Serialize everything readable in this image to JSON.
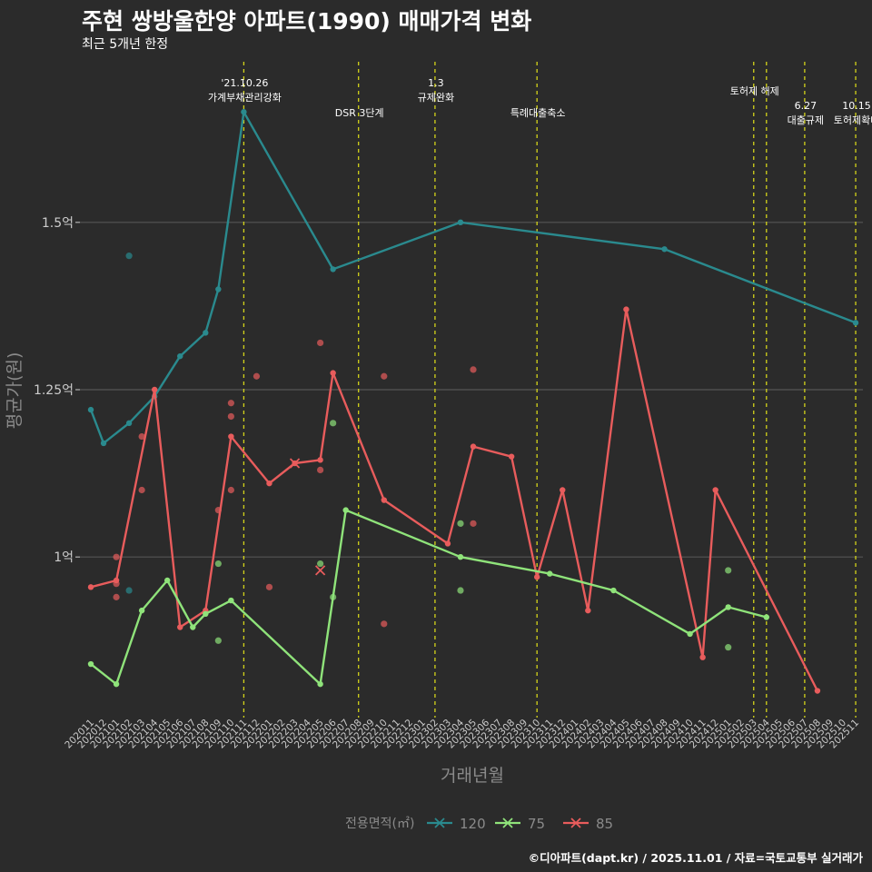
{
  "title": "주현 쌍방울한양 아파트(1990) 매매가격 변화",
  "subtitle": "최근 5개년 한정",
  "caption": "©디아파트(dapt.kr) / 2025.11.01 / 자료=국토교통부 실거래가",
  "colors": {
    "s120": "#2a8a8e",
    "s75": "#8fe37a",
    "s85": "#e85c5c",
    "vline": "#d4d41a",
    "grid": "#555555",
    "text": "#cccccc",
    "axis_title": "#8a8a8a"
  },
  "chart_data": {
    "type": "line",
    "xlabel": "거래년월",
    "ylabel": "평균가(원)",
    "ylim": [
      0.76,
      1.74
    ],
    "yticks": [
      {
        "value": 1.0,
        "label": "1억"
      },
      {
        "value": 1.25,
        "label": "1.25억"
      },
      {
        "value": 1.5,
        "label": "1.5억"
      }
    ],
    "categories": [
      "202011",
      "202012",
      "202101",
      "202102",
      "202103",
      "202104",
      "202105",
      "202106",
      "202107",
      "202108",
      "202109",
      "202110",
      "202111",
      "202112",
      "202201",
      "202202",
      "202203",
      "202204",
      "202205",
      "202206",
      "202207",
      "202208",
      "202209",
      "202210",
      "202211",
      "202212",
      "202301",
      "202302",
      "202303",
      "202304",
      "202305",
      "202306",
      "202307",
      "202308",
      "202309",
      "202310",
      "202311",
      "202312",
      "202401",
      "202402",
      "202403",
      "202404",
      "202405",
      "202406",
      "202407",
      "202408",
      "202409",
      "202410",
      "202411",
      "202412",
      "202501",
      "202502",
      "202503",
      "202504",
      "202505",
      "202506",
      "202507",
      "202508",
      "202509",
      "202510",
      "202511"
    ],
    "legend_title": "전용면적(㎡)",
    "series": [
      {
        "name": "120",
        "color": "#2a8a8e",
        "line": [
          [
            "202011",
            1.22
          ],
          [
            "202012",
            1.17
          ],
          [
            "202102",
            1.2
          ],
          [
            "202104",
            1.24
          ],
          [
            "202106",
            1.3
          ],
          [
            "202108",
            1.335
          ],
          [
            "202109",
            1.4
          ],
          [
            "202111",
            1.665
          ],
          [
            "202206",
            1.43
          ],
          [
            "202304",
            1.5
          ],
          [
            "202408",
            1.46
          ],
          [
            "202511",
            1.35
          ]
        ],
        "points": [
          [
            "202102",
            1.45
          ],
          [
            "202102",
            0.95
          ]
        ]
      },
      {
        "name": "75",
        "color": "#8fe37a",
        "line": [
          [
            "202011",
            0.84
          ],
          [
            "202101",
            0.81
          ],
          [
            "202103",
            0.92
          ],
          [
            "202105",
            0.965
          ],
          [
            "202107",
            0.895
          ],
          [
            "202108",
            0.915
          ],
          [
            "202110",
            0.935
          ],
          [
            "202205",
            0.81
          ],
          [
            "202207",
            1.07
          ],
          [
            "202304",
            1.0
          ],
          [
            "202311",
            0.975
          ],
          [
            "202404",
            0.95
          ],
          [
            "202410",
            0.885
          ],
          [
            "202501",
            0.925
          ],
          [
            "202504",
            0.91
          ]
        ],
        "points": [
          [
            "202109",
            0.99
          ],
          [
            "202109",
            0.875
          ],
          [
            "202205",
            0.99
          ],
          [
            "202206",
            1.2
          ],
          [
            "202206",
            0.94
          ],
          [
            "202304",
            1.05
          ],
          [
            "202304",
            0.95
          ],
          [
            "202501",
            0.98
          ],
          [
            "202501",
            0.865
          ]
        ]
      },
      {
        "name": "85",
        "color": "#e85c5c",
        "line": [
          [
            "202011",
            0.955
          ],
          [
            "202101",
            0.965
          ],
          [
            "202104",
            1.25
          ],
          [
            "202106",
            0.895
          ],
          [
            "202108",
            0.92
          ],
          [
            "202110",
            1.18
          ],
          [
            "202201",
            1.11
          ],
          [
            "202203",
            1.14
          ],
          [
            "202205",
            1.145
          ],
          [
            "202206",
            1.275
          ],
          [
            "202210",
            1.085
          ],
          [
            "202303",
            1.02
          ],
          [
            "202305",
            1.165
          ],
          [
            "202308",
            1.15
          ],
          [
            "202310",
            0.97
          ],
          [
            "202312",
            1.1
          ],
          [
            "202402",
            0.92
          ],
          [
            "202405",
            1.37
          ],
          [
            "202411",
            0.85
          ],
          [
            "202412",
            1.1
          ],
          [
            "202508",
            0.8
          ]
        ],
        "points": [
          [
            "202101",
            1.0
          ],
          [
            "202101",
            0.96
          ],
          [
            "202101",
            0.94
          ],
          [
            "202103",
            1.18
          ],
          [
            "202103",
            1.1
          ],
          [
            "202110",
            1.23
          ],
          [
            "202110",
            1.21
          ],
          [
            "202110",
            1.1
          ],
          [
            "202109",
            1.07
          ],
          [
            "202112",
            1.27
          ],
          [
            "202201",
            0.955
          ],
          [
            "202205",
            1.32
          ],
          [
            "202205",
            1.13
          ],
          [
            "202210",
            1.27
          ],
          [
            "202210",
            0.9
          ],
          [
            "202305",
            1.28
          ],
          [
            "202305",
            1.05
          ]
        ],
        "crosses": [
          [
            "202203",
            1.14
          ],
          [
            "202205",
            0.98
          ]
        ]
      }
    ],
    "events": [
      {
        "at": "202111",
        "lines": [
          "'21.10.26",
          "가계부채관리강화"
        ],
        "level": 0
      },
      {
        "at": "202208",
        "lines": [
          "DSR 3단계"
        ],
        "level": 2
      },
      {
        "at": "202302",
        "lines": [
          "1.3",
          "규제완화"
        ],
        "level": 0
      },
      {
        "at": "202310",
        "lines": [
          "특례대출축소"
        ],
        "level": 2
      },
      {
        "at": "202503",
        "lines": [
          "토허제 해제"
        ],
        "level": 1
      },
      {
        "at": "202504",
        "lines": [],
        "level": 1
      },
      {
        "at": "202507",
        "lines": [
          "6.27",
          "대출규제"
        ],
        "level": 3
      },
      {
        "at": "202511",
        "lines": [
          "10.15",
          "토허제확대"
        ],
        "level": 3
      }
    ]
  }
}
